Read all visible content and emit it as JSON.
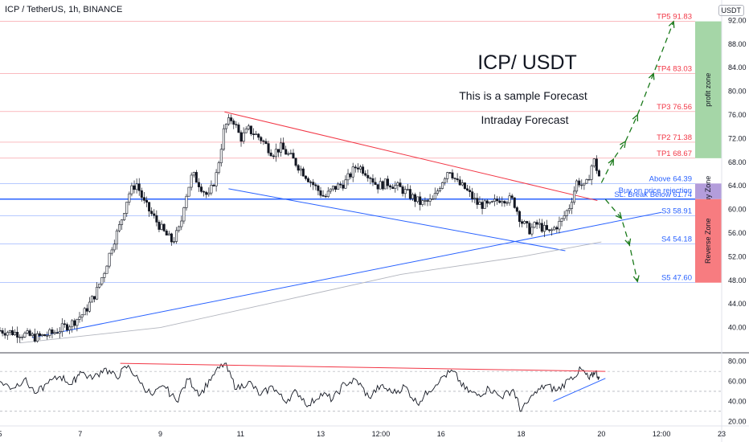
{
  "header": {
    "symbol": "ICP / TetherUS, 1h, BINANCE",
    "currency": "USDT"
  },
  "chart_data": [
    {
      "type": "candlestick",
      "ylim": [
        36,
        93
      ],
      "yticks": [
        40,
        44,
        48,
        52,
        56,
        60,
        64,
        68,
        72,
        76,
        80,
        84,
        88,
        92
      ],
      "ytick_labels": [
        "40.00",
        "44.00",
        "48.00",
        "52.00",
        "56.00",
        "60.00",
        "64.00",
        "68.00",
        "72.00",
        "76.00",
        "80.00",
        "84.00",
        "88.00",
        "92.00"
      ],
      "xlim": [
        5,
        23
      ],
      "xticks": [
        5,
        7,
        9,
        11,
        13,
        14.5,
        16,
        18,
        20,
        21.5,
        23
      ],
      "xtick_labels": [
        "5",
        "7",
        "9",
        "11",
        "13",
        "12:00",
        "16",
        "18",
        "20",
        "12:00",
        "23"
      ],
      "title": "ICP/ USDT",
      "subtitle": "This is a sample Forecast",
      "subtitle2": "Intraday Forecast",
      "price_path": [
        [
          5.0,
          39.5
        ],
        [
          5.5,
          39.0
        ],
        [
          5.9,
          38.3
        ],
        [
          6.3,
          39.0
        ],
        [
          6.8,
          40.8
        ],
        [
          7.1,
          42.5
        ],
        [
          7.4,
          46.0
        ],
        [
          7.6,
          49.5
        ],
        [
          7.8,
          54.0
        ],
        [
          8.0,
          57.5
        ],
        [
          8.2,
          62.5
        ],
        [
          8.4,
          64.5
        ],
        [
          8.6,
          61.0
        ],
        [
          8.9,
          58.0
        ],
        [
          9.1,
          56.0
        ],
        [
          9.3,
          54.5
        ],
        [
          9.5,
          57.0
        ],
        [
          9.6,
          61.5
        ],
        [
          9.8,
          66.0
        ],
        [
          10.0,
          64.0
        ],
        [
          10.2,
          62.0
        ],
        [
          10.4,
          66.0
        ],
        [
          10.6,
          74.0
        ],
        [
          10.8,
          75.5
        ],
        [
          11.0,
          72.0
        ],
        [
          11.2,
          73.5
        ],
        [
          11.5,
          72.0
        ],
        [
          11.8,
          69.5
        ],
        [
          12.0,
          70.5
        ],
        [
          12.3,
          68.5
        ],
        [
          12.6,
          66.0
        ],
        [
          12.9,
          63.5
        ],
        [
          13.1,
          62.0
        ],
        [
          13.3,
          63.5
        ],
        [
          13.6,
          64.5
        ],
        [
          13.9,
          67.5
        ],
        [
          14.2,
          66.0
        ],
        [
          14.4,
          64.0
        ],
        [
          14.7,
          64.5
        ],
        [
          15.0,
          63.5
        ],
        [
          15.3,
          62.0
        ],
        [
          15.5,
          61.0
        ],
        [
          15.8,
          61.5
        ],
        [
          16.0,
          64.5
        ],
        [
          16.2,
          67.0
        ],
        [
          16.4,
          64.5
        ],
        [
          16.6,
          63.5
        ],
        [
          16.9,
          61.0
        ],
        [
          17.2,
          60.5
        ],
        [
          17.5,
          62.0
        ],
        [
          17.8,
          61.5
        ],
        [
          18.0,
          58.0
        ],
        [
          18.2,
          56.5
        ],
        [
          18.4,
          57.5
        ],
        [
          18.7,
          56.0
        ],
        [
          19.0,
          58.0
        ],
        [
          19.2,
          60.5
        ],
        [
          19.4,
          65.0
        ],
        [
          19.6,
          63.5
        ],
        [
          19.8,
          68.5
        ],
        [
          19.95,
          65.5
        ]
      ],
      "levels": [
        {
          "label": "TP5 91.83",
          "value": 91.83,
          "color": "#f23645"
        },
        {
          "label": "TP4 83.03",
          "value": 83.03,
          "color": "#f23645"
        },
        {
          "label": "TP3 76.56",
          "value": 76.56,
          "color": "#f23645"
        },
        {
          "label": "TP2 71.38",
          "value": 71.38,
          "color": "#f23645"
        },
        {
          "label": "TP1 68.67",
          "value": 68.67,
          "color": "#f23645"
        },
        {
          "label": "Above 64.39",
          "value": 64.39,
          "color": "#2962ff"
        },
        {
          "label": "SL: Break Below 61.74",
          "value": 61.74,
          "color": "#2962ff"
        },
        {
          "label": "S3 58.91",
          "value": 58.91,
          "color": "#2962ff"
        },
        {
          "label": "S4 54.18",
          "value": 54.18,
          "color": "#2962ff"
        },
        {
          "label": "S5 47.60",
          "value": 47.6,
          "color": "#2962ff"
        }
      ],
      "annotation": "Buy on price rejection",
      "zones": [
        {
          "label": "profit zone",
          "from": 68.67,
          "to": 91.83,
          "color": "#a5d6a7"
        },
        {
          "label": "Buy Zone",
          "from": 61.74,
          "to": 64.39,
          "color": "#b39ddb"
        },
        {
          "label": "Reverse Zone",
          "from": 47.6,
          "to": 61.74,
          "color": "#f77c80"
        }
      ],
      "trendlines": [
        {
          "name": "resistance",
          "color": "#f23645",
          "points": [
            [
              10.6,
              76.5
            ],
            [
              19.9,
              61.5
            ]
          ]
        },
        {
          "name": "lower channel",
          "color": "#2962ff",
          "points": [
            [
              10.7,
              63.5
            ],
            [
              19.1,
              53.0
            ]
          ]
        },
        {
          "name": "support",
          "color": "#2962ff",
          "points": [
            [
              5.8,
              38.3
            ],
            [
              21.5,
              59.5
            ]
          ]
        },
        {
          "name": "moving average",
          "color": "#b2b5be",
          "points": [
            [
              5.5,
              37.4
            ],
            [
              9.0,
              40.0
            ],
            [
              12.0,
              44.5
            ],
            [
              15.0,
              49.0
            ],
            [
              18.0,
              52.0
            ],
            [
              20.0,
              54.5
            ]
          ]
        }
      ],
      "forecast_up": [
        [
          20.0,
          64.5
        ],
        [
          20.3,
          68.5
        ],
        [
          20.6,
          71.5
        ],
        [
          20.9,
          76.0
        ],
        [
          21.3,
          83.0
        ],
        [
          21.8,
          91.8
        ]
      ],
      "forecast_down": [
        [
          20.1,
          61.7
        ],
        [
          20.5,
          58.5
        ],
        [
          20.7,
          54.0
        ],
        [
          20.9,
          47.8
        ]
      ]
    },
    {
      "type": "line",
      "name": "RSI",
      "ylim": [
        17,
        87
      ],
      "yticks": [
        20,
        40,
        60,
        80
      ],
      "ytick_labels": [
        "20.00",
        "40.00",
        "60.00",
        "80.00"
      ],
      "bands": [
        70,
        50,
        30
      ],
      "rsi_path": [
        [
          5.0,
          60
        ],
        [
          5.3,
          53
        ],
        [
          5.6,
          62
        ],
        [
          5.9,
          48
        ],
        [
          6.2,
          58
        ],
        [
          6.5,
          65
        ],
        [
          6.8,
          57
        ],
        [
          7.0,
          70
        ],
        [
          7.3,
          62
        ],
        [
          7.6,
          73
        ],
        [
          7.9,
          64
        ],
        [
          8.2,
          76
        ],
        [
          8.5,
          58
        ],
        [
          8.8,
          46
        ],
        [
          9.1,
          55
        ],
        [
          9.4,
          40
        ],
        [
          9.7,
          62
        ],
        [
          10.0,
          47
        ],
        [
          10.3,
          66
        ],
        [
          10.6,
          78
        ],
        [
          10.9,
          52
        ],
        [
          11.2,
          60
        ],
        [
          11.5,
          46
        ],
        [
          11.8,
          55
        ],
        [
          12.1,
          40
        ],
        [
          12.4,
          50
        ],
        [
          12.7,
          36
        ],
        [
          13.0,
          48
        ],
        [
          13.3,
          42
        ],
        [
          13.6,
          58
        ],
        [
          13.9,
          61
        ],
        [
          14.2,
          44
        ],
        [
          14.5,
          56
        ],
        [
          14.8,
          48
        ],
        [
          15.1,
          55
        ],
        [
          15.4,
          38
        ],
        [
          15.7,
          50
        ],
        [
          16.0,
          64
        ],
        [
          16.3,
          70
        ],
        [
          16.6,
          52
        ],
        [
          16.9,
          46
        ],
        [
          17.2,
          53
        ],
        [
          17.5,
          44
        ],
        [
          17.8,
          52
        ],
        [
          18.0,
          30
        ],
        [
          18.3,
          46
        ],
        [
          18.6,
          56
        ],
        [
          18.9,
          51
        ],
        [
          19.2,
          62
        ],
        [
          19.5,
          72
        ],
        [
          19.7,
          62
        ],
        [
          19.85,
          70
        ],
        [
          19.95,
          63
        ]
      ],
      "trendlines": [
        {
          "color": "#f23645",
          "points": [
            [
              8.0,
              78
            ],
            [
              20.1,
              70
            ]
          ]
        },
        {
          "color": "#2962ff",
          "points": [
            [
              18.8,
              40
            ],
            [
              20.1,
              63
            ]
          ]
        }
      ]
    }
  ]
}
